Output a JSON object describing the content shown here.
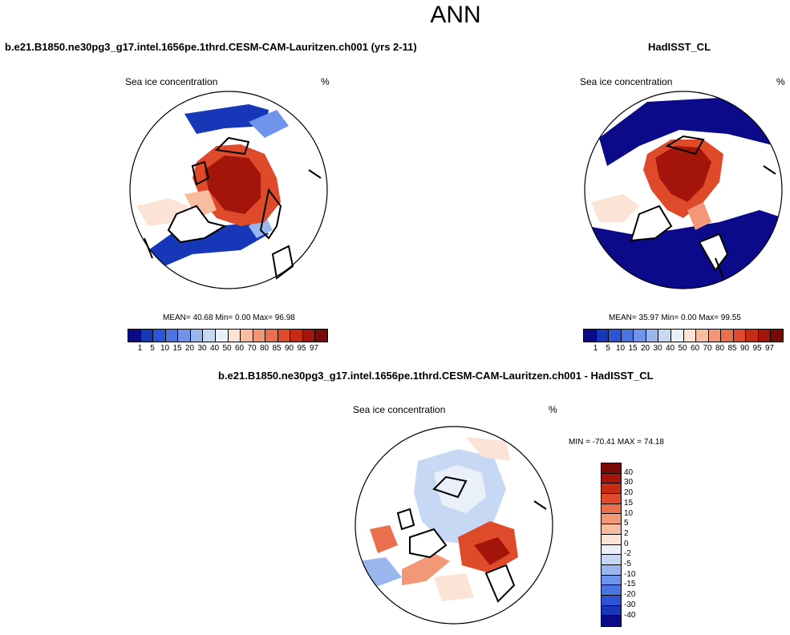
{
  "page": {
    "title": "ANN"
  },
  "panel_left": {
    "case_title": "b.e21.B1850.ne30pg3_g17.intel.1656pe.1thrd.CESM-CAM-Lauritzen.ch001 (yrs 2-11)",
    "variable": "Sea ice concentration",
    "units": "%",
    "stats": "MEAN=  40.68   Min=    0.00   Max=   96.98"
  },
  "panel_right": {
    "case_title": "HadISST_CL",
    "variable": "Sea ice concentration",
    "units": "%",
    "stats": "MEAN=  35.97   Min=    0.00   Max=   99.55"
  },
  "panel_diff": {
    "case_title": "b.e21.B1850.ne30pg3_g17.intel.1656pe.1thrd.CESM-CAM-Lauritzen.ch001 - HadISST_CL",
    "variable": "Sea ice concentration",
    "units": "%",
    "stats": "MIN = -70.41  MAX =  74.18"
  },
  "colorbar_main": {
    "labels": [
      "1",
      "5",
      "10",
      "15",
      "20",
      "30",
      "40",
      "50",
      "60",
      "70",
      "80",
      "85",
      "90",
      "95",
      "97"
    ],
    "colors": [
      "#0a0a8a",
      "#1638b8",
      "#2b55d6",
      "#4a74e0",
      "#6f94ea",
      "#9ab6ef",
      "#c7d8f4",
      "#eaf0fa",
      "#fbe3d6",
      "#f7bda1",
      "#f29878",
      "#ea6f4e",
      "#df4a2b",
      "#c82a14",
      "#a3150a",
      "#7a0a05"
    ]
  },
  "colorbar_diff": {
    "labels": [
      "40",
      "30",
      "20",
      "15",
      "10",
      "5",
      "2",
      "0",
      "-2",
      "-5",
      "-10",
      "-15",
      "-20",
      "-30",
      "-40"
    ],
    "colors": [
      "#7a0a05",
      "#a3150a",
      "#c82a14",
      "#df4a2b",
      "#ea6f4e",
      "#f29878",
      "#f7bda1",
      "#fbe3d6",
      "#eaf0fa",
      "#c7d8f4",
      "#9ab6ef",
      "#6f94ea",
      "#4a74e0",
      "#2b55d6",
      "#1638b8",
      "#0a0a8a"
    ]
  }
}
